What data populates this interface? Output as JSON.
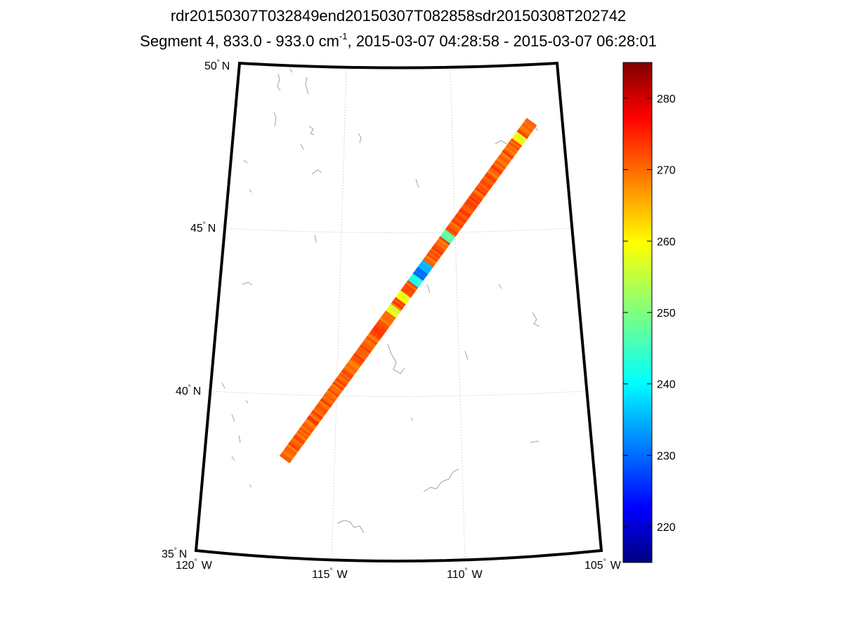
{
  "title_line1": "rdr20150307T032849end20150307T082858sdr20150308T202742",
  "title_line2": {
    "prefix": "Segment 4, 833.0 - 933.0 cm",
    "sup": "-1",
    "suffix": ", 2015-03-07 04:28:58 - 2015-03-07 06:28:01"
  },
  "map": {
    "lat_labels": [
      {
        "deg": "50",
        "hemi": "N"
      },
      {
        "deg": "45",
        "hemi": "N"
      },
      {
        "deg": "40",
        "hemi": "N"
      },
      {
        "deg": "35",
        "hemi": "N"
      }
    ],
    "lon_labels": [
      {
        "deg": "120",
        "hemi": "W"
      },
      {
        "deg": "115",
        "hemi": "W"
      },
      {
        "deg": "110",
        "hemi": "W"
      },
      {
        "deg": "105",
        "hemi": "W"
      }
    ],
    "degree_symbol": "°",
    "swath": {
      "start": {
        "lon": -116.9,
        "lat": 37.8
      },
      "end": {
        "lon": -106.4,
        "lat": 48.2
      },
      "typical_value": 270,
      "anomalies": [
        {
          "t": 0.55,
          "value": 232
        },
        {
          "t": 0.57,
          "value": 238
        },
        {
          "t": 0.53,
          "value": 244
        },
        {
          "t": 0.48,
          "value": 258
        },
        {
          "t": 0.44,
          "value": 256
        },
        {
          "t": 0.66,
          "value": 248
        },
        {
          "t": 0.95,
          "value": 258
        }
      ]
    }
  },
  "colorbar": {
    "min": 215,
    "max": 285,
    "ticks": [
      "220",
      "230",
      "240",
      "250",
      "260",
      "270",
      "280"
    ]
  }
}
